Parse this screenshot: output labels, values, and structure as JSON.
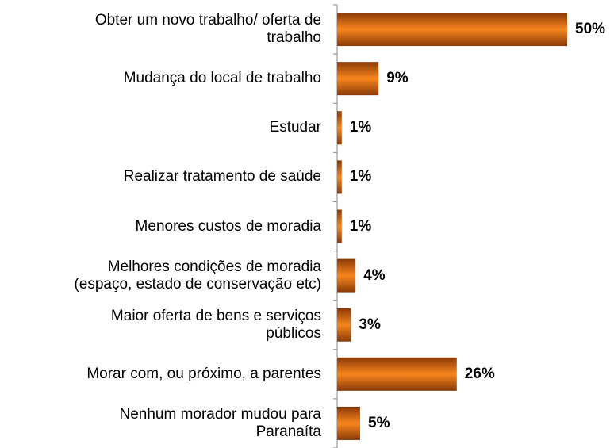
{
  "chart_data": {
    "type": "bar",
    "orientation": "horizontal",
    "categories": [
      "Obter um novo trabalho/ oferta de\ntrabalho",
      "Mudança do local de trabalho",
      "Estudar",
      "Realizar tratamento de saúde",
      "Menores custos de moradia",
      "Melhores condições de moradia\n(espaço, estado de conservação etc)",
      "Maior oferta de bens e serviços\npúblicos",
      "Morar com, ou próximo, a parentes",
      "Nenhum morador mudou para\nParanaíta"
    ],
    "values": [
      50,
      9,
      1,
      1,
      1,
      4,
      3,
      26,
      5
    ],
    "value_labels": [
      "50%",
      "9%",
      "1%",
      "1%",
      "1%",
      "4%",
      "3%",
      "26%",
      "5%"
    ],
    "color": "#f07c1c"
  }
}
